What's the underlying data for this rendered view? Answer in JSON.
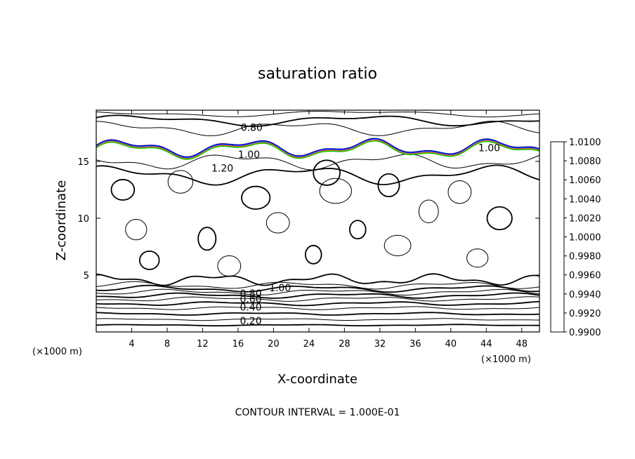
{
  "chart_data": {
    "type": "contour",
    "title": "saturation ratio",
    "xlabel": "X-coordinate",
    "ylabel": "Z-coordinate",
    "x_unit_label": "(×1000 m)",
    "xlim": [
      0,
      50
    ],
    "ylim": [
      0,
      19.5
    ],
    "x_ticks": [
      4,
      8,
      12,
      16,
      20,
      24,
      28,
      32,
      36,
      40,
      44,
      48
    ],
    "y_ticks": [
      5,
      10,
      15
    ],
    "contour_labels": [
      {
        "text": "0.80",
        "x": 16.3,
        "z": 18.0
      },
      {
        "text": "1.00",
        "x": 16.0,
        "z": 15.6
      },
      {
        "text": "1.00",
        "x": 43.1,
        "z": 16.2
      },
      {
        "text": "1.20",
        "x": 13.0,
        "z": 14.4
      },
      {
        "text": "1.00",
        "x": 19.5,
        "z": 3.9
      },
      {
        "text": "0.80",
        "x": 16.2,
        "z": 3.4
      },
      {
        "text": "0.60",
        "x": 16.2,
        "z": 2.9
      },
      {
        "text": "0.40",
        "x": 16.2,
        "z": 2.2
      },
      {
        "text": "0.20",
        "x": 16.2,
        "z": 1.0
      }
    ],
    "colorbar": {
      "levels": [
        "1.0100",
        "1.0080",
        "1.0060",
        "1.0040",
        "1.0020",
        "1.0000",
        "0.9980",
        "0.9960",
        "0.9940",
        "0.9920",
        "0.9900"
      ],
      "colors": [
        "#ff9999",
        "#ff2222",
        "#ff6600",
        "#ffaa00",
        "#dddd00",
        "#88dd00",
        "#00cc00",
        "#00ccaa",
        "#00aaee",
        "#2255ff",
        "#0000cc",
        "#5500aa"
      ]
    },
    "footer": "CONTOUR INTERVAL = 1.000E-01"
  }
}
